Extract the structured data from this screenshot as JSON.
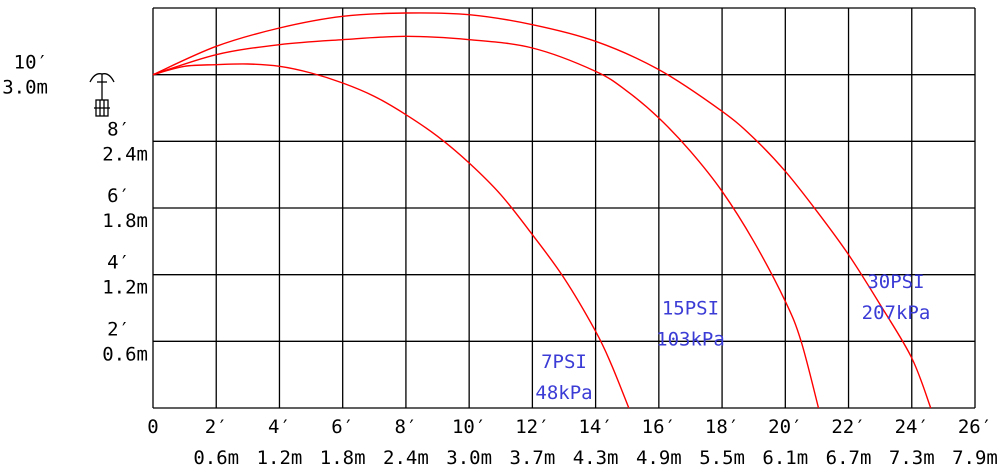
{
  "chart_data": {
    "type": "line",
    "title": "",
    "xlabel": "",
    "ylabel": "",
    "xlim": [
      0,
      26
    ],
    "ylim": [
      0,
      12
    ],
    "grid": true,
    "x_ticks": [
      {
        "value": 0,
        "ft": "0",
        "m": ""
      },
      {
        "value": 2,
        "ft": "2′",
        "m": "0.6m"
      },
      {
        "value": 4,
        "ft": "4′",
        "m": "1.2m"
      },
      {
        "value": 6,
        "ft": "6′",
        "m": "1.8m"
      },
      {
        "value": 8,
        "ft": "8′",
        "m": "2.4m"
      },
      {
        "value": 10,
        "ft": "10′",
        "m": "3.0m"
      },
      {
        "value": 12,
        "ft": "12′",
        "m": "3.7m"
      },
      {
        "value": 14,
        "ft": "14′",
        "m": "4.3m"
      },
      {
        "value": 16,
        "ft": "16′",
        "m": "4.9m"
      },
      {
        "value": 18,
        "ft": "18′",
        "m": "5.5m"
      },
      {
        "value": 20,
        "ft": "20′",
        "m": "6.1m"
      },
      {
        "value": 22,
        "ft": "22′",
        "m": "6.7m"
      },
      {
        "value": 24,
        "ft": "24′",
        "m": "7.3m"
      },
      {
        "value": 26,
        "ft": "26′",
        "m": "7.9m"
      }
    ],
    "y_ticks": [
      {
        "value": 2,
        "ft": "2′",
        "m": "0.6m"
      },
      {
        "value": 4,
        "ft": "4′",
        "m": "1.2m"
      },
      {
        "value": 6,
        "ft": "6′",
        "m": "1.8m"
      },
      {
        "value": 8,
        "ft": "8′",
        "m": "2.4m"
      },
      {
        "value": 10,
        "ft": "10′",
        "m": "3.0m"
      }
    ],
    "sprinkler_icon": "sprinkler-head-icon",
    "series": [
      {
        "name": "7PSI / 48kPa",
        "label_lines": [
          "7PSI",
          "48kPa"
        ],
        "label_anchor": [
          13,
          1.2
        ],
        "color": "#ff0000",
        "label_color": "#3b3bd6",
        "x": [
          0,
          1,
          2,
          3,
          4,
          5,
          6,
          7,
          8,
          9,
          10,
          11,
          12,
          13,
          14,
          14.5,
          15.05
        ],
        "y": [
          10,
          10.25,
          10.3,
          10.32,
          10.25,
          10.05,
          9.75,
          9.35,
          8.8,
          8.15,
          7.35,
          6.4,
          5.2,
          3.9,
          2.3,
          1.3,
          0
        ]
      },
      {
        "name": "15PSI / 103kPa",
        "label_lines": [
          "15PSI",
          "103kPa"
        ],
        "label_anchor": [
          17,
          2.8
        ],
        "color": "#ff0000",
        "label_color": "#3b3bd6",
        "x": [
          0,
          2,
          4,
          6,
          8,
          10,
          12,
          14,
          15,
          16,
          17,
          18,
          19,
          20,
          20.5,
          21.05
        ],
        "y": [
          10,
          10.6,
          10.9,
          11.05,
          11.15,
          11.05,
          10.8,
          10.1,
          9.5,
          8.7,
          7.7,
          6.5,
          5.0,
          3.2,
          2.0,
          0
        ]
      },
      {
        "name": "30PSI / 207kPa",
        "label_lines": [
          "30PSI",
          "207kPa"
        ],
        "label_anchor": [
          23.5,
          3.6
        ],
        "color": "#ff0000",
        "label_color": "#3b3bd6",
        "x": [
          0,
          2,
          4,
          6,
          8,
          10,
          12,
          14,
          16,
          18,
          19,
          20,
          21,
          22,
          23,
          24,
          24.6
        ],
        "y": [
          10,
          10.85,
          11.4,
          11.75,
          11.85,
          11.8,
          11.5,
          11.0,
          10.15,
          8.9,
          8.1,
          7.1,
          5.9,
          4.6,
          3.1,
          1.5,
          0
        ]
      }
    ]
  }
}
